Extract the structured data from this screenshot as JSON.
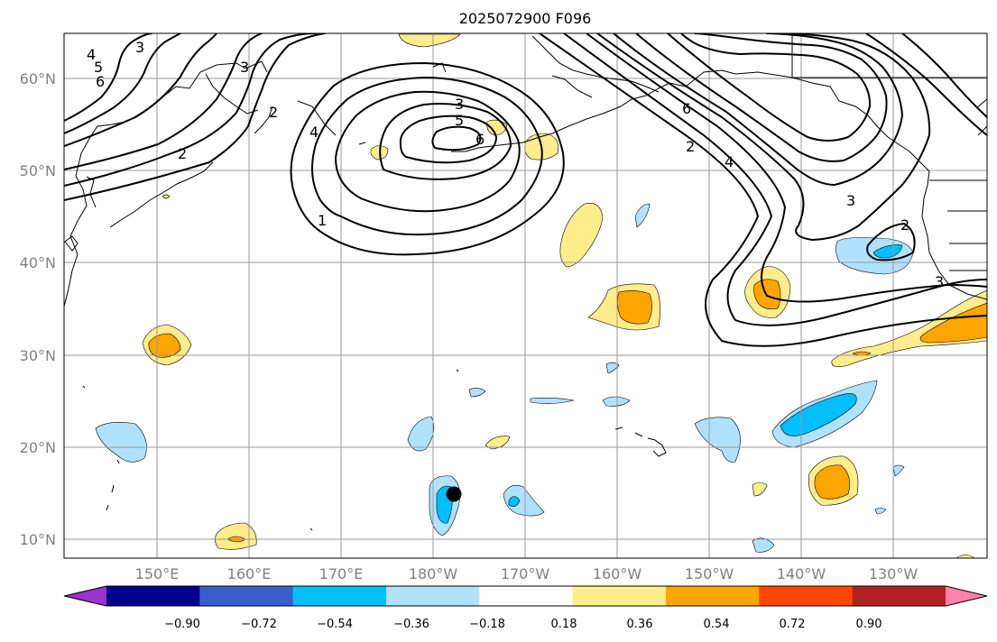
{
  "title": "2025072900 F096",
  "map": {
    "longitude_labels": [
      "150°E",
      "160°E",
      "170°E",
      "180°W",
      "170°W",
      "160°W",
      "150°W",
      "140°W",
      "130°W"
    ],
    "latitude_labels": [
      "60°N",
      "50°N",
      "40°N",
      "30°N",
      "20°N",
      "10°N"
    ],
    "grid": true,
    "contour_labels": [
      "3",
      "4",
      "5",
      "6",
      "2",
      "1",
      "3",
      "5",
      "6",
      "4",
      "2",
      "3",
      "6",
      "4",
      "2",
      "3",
      "2",
      "3"
    ]
  },
  "colorbar": {
    "tick_labels": [
      "−0.90",
      "−0.72",
      "−0.54",
      "−0.36",
      "−0.18",
      "0.18",
      "0.36",
      "0.54",
      "0.72",
      "0.90"
    ],
    "colors": [
      "#9a32cd",
      "#00008b",
      "#3a5fcd",
      "#00bfff",
      "#b0e2ff",
      "#ffffff",
      "#ffec8b",
      "#ffa500",
      "#ff4500",
      "#b22222",
      "#ff82ab"
    ],
    "extend": "both"
  },
  "marker": {
    "label_icon": "storm-position-marker"
  }
}
